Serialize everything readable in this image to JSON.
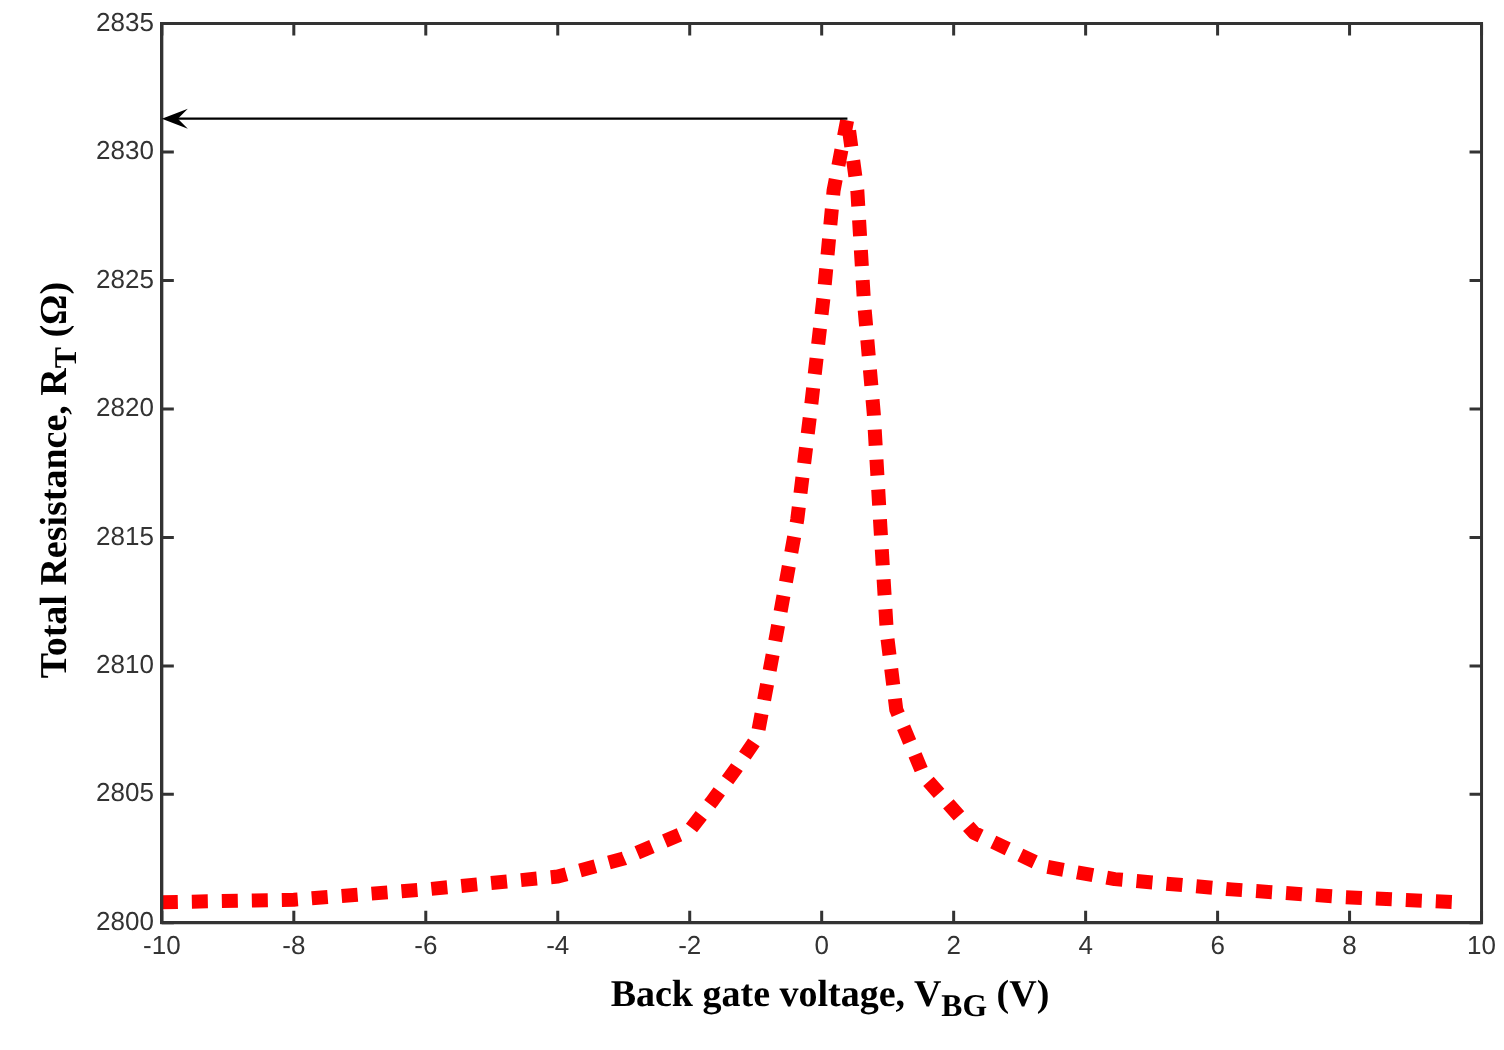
{
  "chart_data": {
    "type": "line",
    "xlabel": "Back gate voltage, V$_{BG}$ (V)",
    "ylabel": "Total Resistance, R$_{T}$ (Ω)",
    "xlim": [
      -10,
      10
    ],
    "xticks": [
      -10,
      -8,
      -6,
      -4,
      -2,
      0,
      2,
      4,
      6,
      8,
      10
    ],
    "ylim": [
      2800,
      2835
    ],
    "yticks": [
      2800,
      2805,
      2810,
      2815,
      2820,
      2825,
      2830,
      2835
    ],
    "grid": false,
    "legend": false,
    "marker": "none",
    "line_style": "dotted",
    "series": [
      {
        "color": "#ff0000",
        "x": [
          -10,
          -8,
          -6,
          -4,
          -3,
          -2,
          -1.67,
          -1.3,
          -0.98,
          -0.68,
          -0.37,
          -0.17,
          0.03,
          0.18,
          0.39,
          0.54,
          0.64,
          0.79,
          0.89,
          0.99,
          1.13,
          1.55,
          2.31,
          3.37,
          4.44,
          6.21,
          7.93,
          9.6
        ],
        "values": [
          2800.8,
          2800.9,
          2801.3,
          2801.8,
          2802.5,
          2803.6,
          2804.7,
          2806.0,
          2807.2,
          2811.3,
          2815.7,
          2819.9,
          2824.4,
          2828.5,
          2831.3,
          2828.5,
          2824.2,
          2819.8,
          2815.4,
          2811.2,
          2808.3,
          2805.7,
          2803.5,
          2802.2,
          2801.7,
          2801.3,
          2801.0,
          2800.8
        ]
      }
    ]
  }
}
